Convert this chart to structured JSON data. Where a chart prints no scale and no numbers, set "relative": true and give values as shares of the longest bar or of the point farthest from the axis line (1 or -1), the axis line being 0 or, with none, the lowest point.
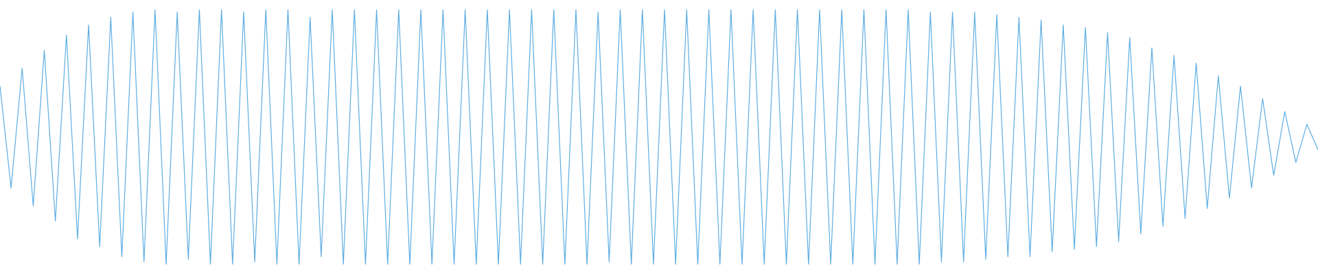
{
  "chart_data": {
    "type": "line",
    "relative": true,
    "categories": [
      null,
      null,
      null,
      null,
      null,
      null,
      null,
      null,
      null,
      null,
      null,
      null,
      null,
      null,
      null,
      null,
      null,
      null,
      null,
      null,
      null,
      null,
      null,
      null,
      null,
      null,
      null,
      null,
      null,
      null,
      null,
      null,
      null,
      null,
      null,
      null,
      null,
      null,
      null,
      null,
      null,
      null,
      null,
      null,
      null,
      null,
      null,
      null,
      null,
      null,
      null,
      null,
      null,
      null,
      null,
      null,
      null,
      null,
      null,
      null,
      null,
      null,
      null,
      null,
      null,
      null,
      null,
      null,
      null,
      null,
      null,
      null,
      null,
      null,
      null,
      null,
      null,
      null,
      null,
      null,
      null,
      null,
      null,
      null,
      null,
      null,
      null,
      null,
      null,
      null,
      null,
      null,
      null,
      null,
      null,
      null,
      null,
      null,
      null,
      null,
      null,
      null,
      null,
      null,
      null,
      null,
      null,
      null,
      null,
      null,
      null,
      null,
      null,
      null,
      null,
      null,
      null,
      null,
      null,
      null
    ],
    "series": [
      {
        "color": "#5dade2",
        "values": [
          0.7,
          0.3,
          0.77,
          0.23,
          0.84,
          0.17,
          0.9,
          0.1,
          0.94,
          0.07,
          0.97,
          0.03,
          0.99,
          0.01,
          1,
          0,
          0.99,
          0.02,
          1,
          0,
          1,
          0,
          0.99,
          0.01,
          1,
          0,
          1,
          0,
          0.97,
          0.03,
          1,
          0,
          1,
          0,
          1,
          0,
          1,
          0,
          1,
          0,
          1,
          0,
          1,
          0,
          1,
          0,
          1,
          0,
          1,
          0,
          1,
          0,
          1,
          0,
          0.99,
          0.01,
          1,
          0,
          1,
          0,
          1,
          0,
          1,
          0,
          1,
          0,
          1,
          0,
          1,
          0,
          1,
          0,
          1,
          0,
          1,
          0,
          1,
          0,
          1,
          0,
          1,
          0,
          1,
          0,
          0.99,
          0.01,
          0.99,
          0.01,
          0.99,
          0.02,
          0.98,
          0.03,
          0.97,
          0.03,
          0.96,
          0.05,
          0.94,
          0.06,
          0.93,
          0.07,
          0.91,
          0.09,
          0.89,
          0.12,
          0.85,
          0.15,
          0.82,
          0.18,
          0.79,
          0.22,
          0.74,
          0.26,
          0.7,
          0.3,
          0.65,
          0.35,
          0.6,
          0.4,
          0.55,
          0.45
        ]
      }
    ]
  }
}
